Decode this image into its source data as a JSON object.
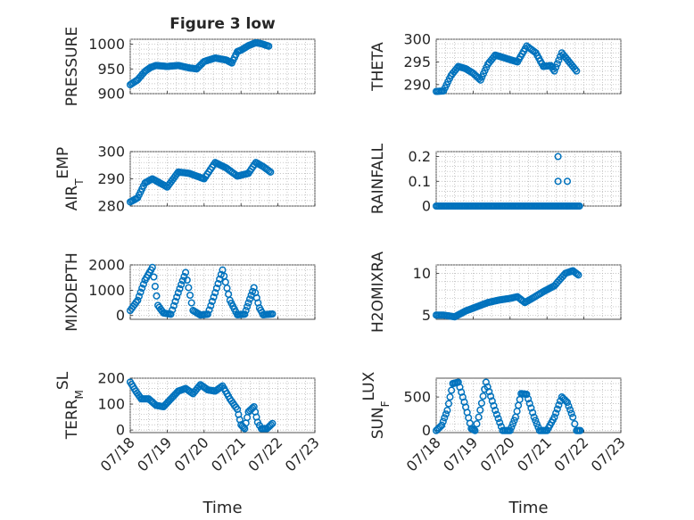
{
  "chart_data": [
    {
      "type": "scatter",
      "id": "pressure",
      "title": "Figure 3 low",
      "ylabel": "PRESSURE",
      "xlabel": "",
      "xlim": [
        0,
        5
      ],
      "ylim": [
        900,
        1010
      ],
      "x_ticks": [
        "07/18",
        "07/19",
        "07/20",
        "07/21",
        "07/22",
        "07/23"
      ],
      "y_ticks": [
        900,
        950,
        1000
      ],
      "grid": true,
      "anchors": [
        [
          0,
          918
        ],
        [
          0.2,
          928
        ],
        [
          0.4,
          945
        ],
        [
          0.55,
          953
        ],
        [
          0.7,
          957
        ],
        [
          1.0,
          955
        ],
        [
          1.3,
          957
        ],
        [
          1.6,
          952
        ],
        [
          1.8,
          950
        ],
        [
          2.0,
          965
        ],
        [
          2.3,
          972
        ],
        [
          2.6,
          968
        ],
        [
          2.75,
          962
        ],
        [
          2.9,
          985
        ],
        [
          3.0,
          988
        ],
        [
          3.2,
          997
        ],
        [
          3.4,
          1003
        ],
        [
          3.55,
          1001
        ],
        [
          3.75,
          996
        ]
      ]
    },
    {
      "type": "scatter",
      "id": "theta",
      "title": "",
      "ylabel": "THETA",
      "xlabel": "",
      "xlim": [
        0,
        5
      ],
      "ylim": [
        288,
        300
      ],
      "x_ticks": [
        "07/18",
        "07/19",
        "07/20",
        "07/21",
        "07/22",
        "07/23"
      ],
      "y_ticks": [
        290,
        295,
        300
      ],
      "grid": true,
      "anchors": [
        [
          0,
          288.5
        ],
        [
          0.2,
          288.6
        ],
        [
          0.4,
          292.0
        ],
        [
          0.6,
          294.0
        ],
        [
          0.8,
          293.5
        ],
        [
          1.0,
          292.5
        ],
        [
          1.2,
          291.0
        ],
        [
          1.4,
          294.5
        ],
        [
          1.6,
          296.5
        ],
        [
          1.8,
          296.0
        ],
        [
          2.0,
          295.5
        ],
        [
          2.2,
          295.0
        ],
        [
          2.45,
          298.5
        ],
        [
          2.7,
          297.0
        ],
        [
          2.9,
          294.0
        ],
        [
          3.1,
          294.2
        ],
        [
          3.2,
          293.0
        ],
        [
          3.4,
          297.0
        ],
        [
          3.6,
          295.0
        ],
        [
          3.8,
          293.0
        ]
      ]
    },
    {
      "type": "scatter",
      "id": "air_temp",
      "title": "",
      "ylabel": "AIR_TEMP",
      "ylabel_main": "AIR",
      "ylabel_sub": "T",
      "ylabel_rest": "EMP",
      "xlabel": "",
      "xlim": [
        0,
        5
      ],
      "ylim": [
        280,
        300
      ],
      "x_ticks": [
        "07/18",
        "07/19",
        "07/20",
        "07/21",
        "07/22",
        "07/23"
      ],
      "y_ticks": [
        280,
        290,
        300
      ],
      "grid": true,
      "anchors": [
        [
          0,
          281.5
        ],
        [
          0.2,
          283.0
        ],
        [
          0.4,
          288.5
        ],
        [
          0.6,
          290.0
        ],
        [
          0.8,
          288.5
        ],
        [
          1.0,
          287.0
        ],
        [
          1.3,
          292.5
        ],
        [
          1.6,
          292.0
        ],
        [
          1.9,
          290.5
        ],
        [
          2.0,
          290.0
        ],
        [
          2.3,
          296.0
        ],
        [
          2.6,
          294.0
        ],
        [
          2.9,
          291.0
        ],
        [
          3.2,
          292.0
        ],
        [
          3.4,
          296.0
        ],
        [
          3.6,
          294.5
        ],
        [
          3.8,
          292.5
        ]
      ]
    },
    {
      "type": "scatter",
      "id": "rainfall",
      "title": "",
      "ylabel": "RAINFALL",
      "xlabel": "",
      "xlim": [
        0,
        5
      ],
      "ylim": [
        0,
        0.22
      ],
      "x_ticks": [
        "07/18",
        "07/19",
        "07/20",
        "07/21",
        "07/22",
        "07/23"
      ],
      "y_ticks": [
        0,
        0.1,
        0.2
      ],
      "grid": true,
      "baseline": [
        0,
        3.9,
        0
      ],
      "extra_points": [
        [
          3.3,
          0.2
        ],
        [
          3.3,
          0.1
        ],
        [
          3.55,
          0.1
        ]
      ]
    },
    {
      "type": "scatter",
      "id": "mixdepth",
      "title": "",
      "ylabel": "MIXDEPTH",
      "xlabel": "",
      "xlim": [
        0,
        5
      ],
      "ylim": [
        -150,
        2000
      ],
      "x_ticks": [
        "07/18",
        "07/19",
        "07/20",
        "07/21",
        "07/22",
        "07/23"
      ],
      "y_ticks": [
        0,
        1000,
        2000
      ],
      "grid": true,
      "anchors": [
        [
          0,
          200
        ],
        [
          0.2,
          600
        ],
        [
          0.4,
          1400
        ],
        [
          0.6,
          1900
        ],
        [
          0.75,
          400
        ],
        [
          0.9,
          100
        ],
        [
          1.1,
          50
        ],
        [
          1.3,
          900
        ],
        [
          1.5,
          1700
        ],
        [
          1.7,
          200
        ],
        [
          1.9,
          20
        ],
        [
          2.1,
          50
        ],
        [
          2.3,
          900
        ],
        [
          2.5,
          1800
        ],
        [
          2.7,
          600
        ],
        [
          2.9,
          30
        ],
        [
          3.1,
          50
        ],
        [
          3.2,
          500
        ],
        [
          3.35,
          1100
        ],
        [
          3.5,
          300
        ],
        [
          3.6,
          30
        ],
        [
          3.85,
          60
        ]
      ]
    },
    {
      "type": "scatter",
      "id": "h2omixra",
      "title": "",
      "ylabel": "H2OMIXRA",
      "xlabel": "",
      "xlim": [
        0,
        5
      ],
      "ylim": [
        4.5,
        11
      ],
      "x_ticks": [
        "07/18",
        "07/19",
        "07/20",
        "07/21",
        "07/22",
        "07/23"
      ],
      "y_ticks": [
        5,
        10
      ],
      "grid": true,
      "anchors": [
        [
          0,
          5.0
        ],
        [
          0.2,
          5.0
        ],
        [
          0.5,
          4.8
        ],
        [
          0.8,
          5.5
        ],
        [
          1.1,
          6.0
        ],
        [
          1.4,
          6.5
        ],
        [
          1.7,
          6.8
        ],
        [
          2.0,
          7.0
        ],
        [
          2.2,
          7.2
        ],
        [
          2.4,
          6.5
        ],
        [
          2.6,
          7.0
        ],
        [
          2.9,
          7.8
        ],
        [
          3.2,
          8.5
        ],
        [
          3.5,
          10.0
        ],
        [
          3.7,
          10.3
        ],
        [
          3.85,
          9.8
        ]
      ]
    },
    {
      "type": "scatter",
      "id": "terr_msl",
      "title": "",
      "ylabel": "TERR_MSL",
      "ylabel_main": "TERR",
      "ylabel_sub": "M",
      "ylabel_rest": "SL",
      "xlabel": "Time",
      "xlim": [
        0,
        5
      ],
      "ylim": [
        -10,
        200
      ],
      "x_ticks": [
        "07/18",
        "07/19",
        "07/20",
        "07/21",
        "07/22",
        "07/23"
      ],
      "y_ticks": [
        0,
        100,
        200
      ],
      "grid": true,
      "anchors": [
        [
          0,
          185
        ],
        [
          0.15,
          150
        ],
        [
          0.3,
          120
        ],
        [
          0.5,
          120
        ],
        [
          0.7,
          95
        ],
        [
          0.9,
          90
        ],
        [
          1.1,
          120
        ],
        [
          1.3,
          150
        ],
        [
          1.5,
          160
        ],
        [
          1.7,
          140
        ],
        [
          1.9,
          175
        ],
        [
          2.1,
          155
        ],
        [
          2.3,
          150
        ],
        [
          2.5,
          170
        ],
        [
          2.7,
          120
        ],
        [
          2.9,
          80
        ],
        [
          3.0,
          20
        ],
        [
          3.1,
          5
        ],
        [
          3.2,
          70
        ],
        [
          3.35,
          90
        ],
        [
          3.45,
          30
        ],
        [
          3.55,
          5
        ],
        [
          3.7,
          5
        ],
        [
          3.85,
          25
        ]
      ]
    },
    {
      "type": "scatter",
      "id": "sun_flux",
      "title": "",
      "ylabel": "SUN_FLUX",
      "ylabel_main": "SUN",
      "ylabel_sub": "F",
      "ylabel_rest": "LUX",
      "xlabel": "Time",
      "xlim": [
        0,
        5
      ],
      "ylim": [
        -30,
        780
      ],
      "x_ticks": [
        "07/18",
        "07/19",
        "07/20",
        "07/21",
        "07/22",
        "07/23"
      ],
      "y_ticks": [
        0,
        500
      ],
      "grid": true,
      "anchors": [
        [
          0,
          0
        ],
        [
          0.15,
          80
        ],
        [
          0.3,
          300
        ],
        [
          0.45,
          700
        ],
        [
          0.6,
          720
        ],
        [
          0.8,
          350
        ],
        [
          0.95,
          30
        ],
        [
          1.05,
          0
        ],
        [
          1.15,
          200
        ],
        [
          1.35,
          720
        ],
        [
          1.6,
          300
        ],
        [
          1.8,
          0
        ],
        [
          2.0,
          0
        ],
        [
          2.15,
          200
        ],
        [
          2.3,
          550
        ],
        [
          2.45,
          540
        ],
        [
          2.65,
          200
        ],
        [
          2.8,
          0
        ],
        [
          3.0,
          0
        ],
        [
          3.2,
          200
        ],
        [
          3.4,
          500
        ],
        [
          3.55,
          420
        ],
        [
          3.7,
          200
        ],
        [
          3.8,
          0
        ],
        [
          3.9,
          0
        ]
      ]
    }
  ]
}
